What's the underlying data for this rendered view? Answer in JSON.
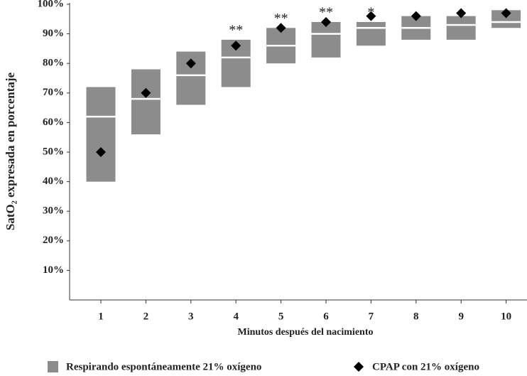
{
  "chart_data": {
    "type": "box",
    "y_label": "SatO₂ expresada en porcentaje",
    "x_label": "Minutos después del nacimiento",
    "categories": [
      "1",
      "2",
      "3",
      "4",
      "5",
      "6",
      "7",
      "8",
      "9",
      "10"
    ],
    "ylim": [
      0,
      100
    ],
    "yticks": [
      {
        "value": 10,
        "label": "10%"
      },
      {
        "value": 20,
        "label": "20%"
      },
      {
        "value": 30,
        "label": "30%"
      },
      {
        "value": 40,
        "label": "40%"
      },
      {
        "value": 50,
        "label": "50%"
      },
      {
        "value": 60,
        "label": "60%"
      },
      {
        "value": 70,
        "label": "70%"
      },
      {
        "value": 80,
        "label": "80%"
      },
      {
        "value": 90,
        "label": "90%"
      },
      {
        "value": 100,
        "label": "100%"
      }
    ],
    "series": [
      {
        "name": "Respirando espontáneamente 21% oxígeno",
        "color": "#8c8c8c",
        "median_color": "#ffffff",
        "low": [
          40,
          56,
          66,
          72,
          80,
          82,
          86,
          88,
          88,
          92
        ],
        "median": [
          62,
          68,
          76,
          82,
          86,
          90,
          92,
          92,
          93,
          94
        ],
        "high": [
          72,
          78,
          84,
          88,
          92,
          94,
          94,
          96,
          96,
          98
        ]
      },
      {
        "name": "CPAP con 21% oxígeno",
        "color": "#000000",
        "values": [
          50,
          70,
          80,
          86,
          92,
          94,
          96,
          96,
          97,
          97
        ]
      }
    ],
    "annotations": [
      {
        "category": "4",
        "text": "**"
      },
      {
        "category": "5",
        "text": "**"
      },
      {
        "category": "6",
        "text": "**"
      },
      {
        "category": "7",
        "text": "*"
      }
    ]
  }
}
